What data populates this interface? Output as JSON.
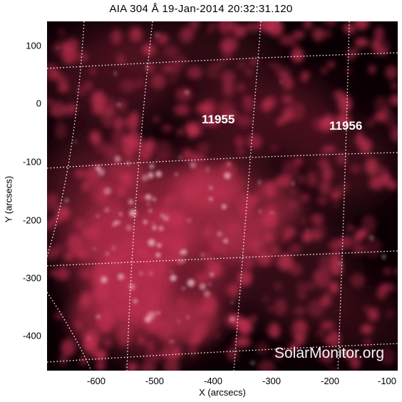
{
  "title": "AIA 304 Å 19-Jan-2014 20:32:31.120",
  "xlabel": "X (arcsecs)",
  "ylabel": "Y (arcsecs)",
  "x_ticks": [
    "-600",
    "-500",
    "-400",
    "-300",
    "-200",
    "-100"
  ],
  "y_ticks": [
    "100",
    "0",
    "-100",
    "-200",
    "-300",
    "-400"
  ],
  "active_regions": [
    {
      "number": "11955"
    },
    {
      "number": "11956"
    }
  ],
  "watermark": "SolarMonitor.org",
  "colors": {
    "background": "#000000",
    "emission": "#c03050",
    "bright_emission": "#f0b8c4",
    "grid": "#ffffff"
  }
}
